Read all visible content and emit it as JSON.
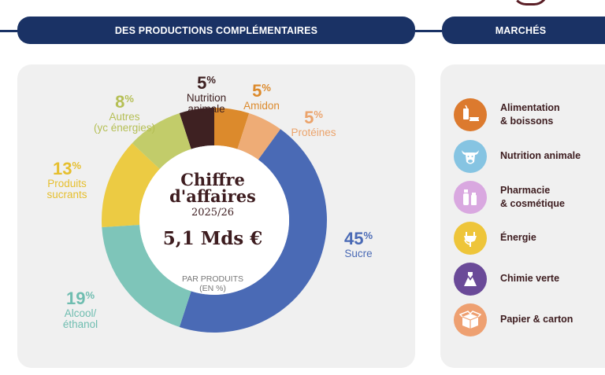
{
  "header": {
    "left_title": "DES PRODUCTIONS COMPLÉMENTAIRES",
    "right_title": "MARCHÉS"
  },
  "chart_data": {
    "type": "pie",
    "title": "Chiffre d'affaires",
    "period": "2025/26",
    "total": "5,1 Mds €",
    "subtitle_line1": "PAR PRODUITS",
    "subtitle_line2": "(EN %)",
    "slices": [
      {
        "name": "Sucre",
        "label_lines": [
          "Sucre"
        ],
        "value": 45,
        "pct_label": "45",
        "color": "#4a6ab5"
      },
      {
        "name": "Alcool/ éthanol",
        "label_lines": [
          "Alcool/",
          "éthanol"
        ],
        "value": 19,
        "pct_label": "19",
        "color": "#7ec5b9"
      },
      {
        "name": "Produits sucrants",
        "label_lines": [
          "Produits",
          "sucrants"
        ],
        "value": 13,
        "pct_label": "13",
        "color": "#eccb43"
      },
      {
        "name": "Autres (yc énergies)",
        "label_lines": [
          "Autres",
          "(yc énergies)"
        ],
        "value": 8,
        "pct_label": "8",
        "color": "#c2cc6a"
      },
      {
        "name": "Nutrition animale",
        "label_lines": [
          "Nutrition",
          "animale"
        ],
        "value": 5,
        "pct_label": "5",
        "color": "#3e2122"
      },
      {
        "name": "Amidon",
        "label_lines": [
          "Amidon"
        ],
        "value": 5,
        "pct_label": "5",
        "color": "#dc8a2c"
      },
      {
        "name": "Protéines",
        "label_lines": [
          "Protéines"
        ],
        "value": 5,
        "pct_label": "5",
        "color": "#eeac76"
      }
    ],
    "pct_suffix": "%",
    "label_colors": {
      "Sucre": "#4a6ab5",
      "Alcool/ éthanol": "#6fbdb0",
      "Produits sucrants": "#e6bf2e",
      "Autres (yc énergies)": "#b5bf55",
      "Nutrition animale": "#3e2122",
      "Amidon": "#dc8a2c",
      "Protéines": "#eba36b"
    }
  },
  "markets": [
    {
      "label_lines": [
        "Alimentation",
        "& boissons"
      ],
      "icon": "food-drink-icon",
      "color": "#dc7a2e"
    },
    {
      "label_lines": [
        "Nutrition animale"
      ],
      "icon": "cow-icon",
      "color": "#86c4e2"
    },
    {
      "label_lines": [
        "Pharmacie",
        "& cosmétique"
      ],
      "icon": "cosmetics-icon",
      "color": "#d9a8e0"
    },
    {
      "label_lines": [
        "Énergie"
      ],
      "icon": "energy-plug-icon",
      "color": "#eec53a"
    },
    {
      "label_lines": [
        "Chimie verte"
      ],
      "icon": "green-chemistry-icon",
      "color": "#6a4a98"
    },
    {
      "label_lines": [
        "Papier & carton"
      ],
      "icon": "box-icon",
      "color": "#eea071"
    }
  ]
}
